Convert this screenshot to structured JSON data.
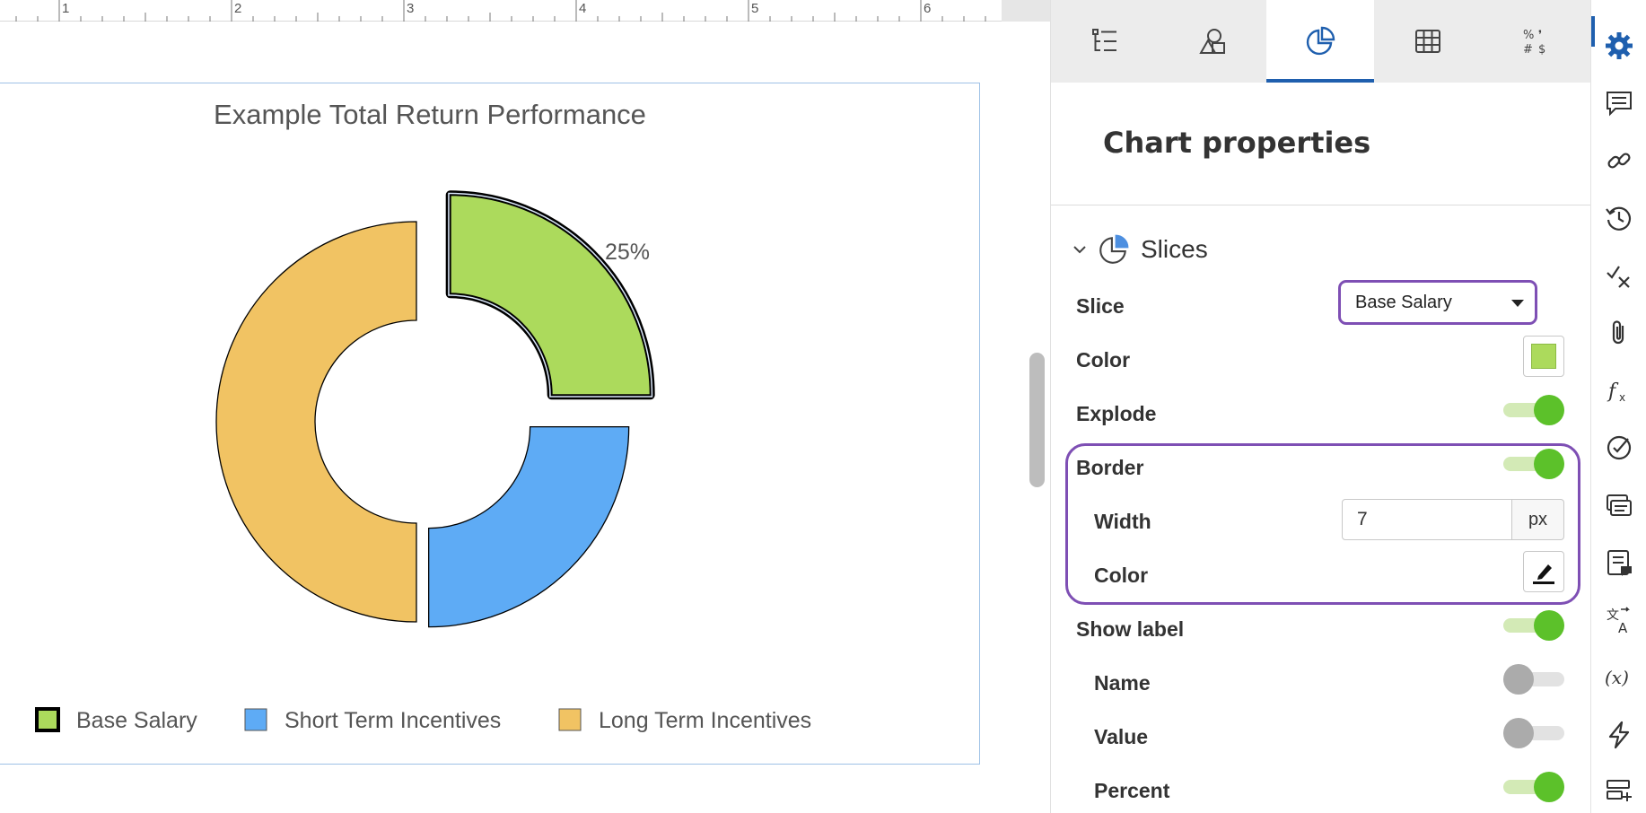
{
  "ruler": {
    "numbers": [
      "1",
      "2",
      "3",
      "4",
      "5",
      "6"
    ]
  },
  "chart_data": {
    "type": "pie",
    "title": "Example Total Return Performance",
    "slices": [
      {
        "name": "Base Salary",
        "value": 25,
        "color": "#acda5c",
        "exploded": true,
        "border_px": 7,
        "label": "25%"
      },
      {
        "name": "Short Term Incentives",
        "value": 25,
        "color": "#5eabf5"
      },
      {
        "name": "Long Term Incentives",
        "value": 50,
        "color": "#f1c363"
      }
    ],
    "donut": true,
    "legend_position": "bottom"
  },
  "panel": {
    "tabs": [
      {
        "icon": "list-settings-icon",
        "active": false
      },
      {
        "icon": "shapes-icon",
        "active": false
      },
      {
        "icon": "pie-chart-icon",
        "active": true
      },
      {
        "icon": "table-grid-icon",
        "active": false
      },
      {
        "icon": "number-format-icon",
        "active": false
      }
    ],
    "title": "Chart properties",
    "section": "Slices",
    "slice_label": "Slice",
    "slice_value": "Base Salary",
    "color_label": "Color",
    "color_value": "#acda5c",
    "explode_label": "Explode",
    "border_label": "Border",
    "width_label": "Width",
    "width_value": "7",
    "width_unit": "px",
    "border_color_label": "Color",
    "show_label_label": "Show label",
    "name_label": "Name",
    "value_label": "Value",
    "percent_label": "Percent",
    "toggles": {
      "explode": true,
      "border": true,
      "show_label": true,
      "name": false,
      "value": false,
      "percent": true
    }
  },
  "rail": {
    "icons": [
      "gear-icon",
      "comment-icon",
      "link-icon",
      "history-icon",
      "track-changes-icon",
      "attachment-icon",
      "formula-icon",
      "check-circle-icon",
      "fields-icon",
      "notes-icon",
      "translate-icon",
      "variable-icon",
      "lightning-icon",
      "add-row-icon"
    ]
  }
}
